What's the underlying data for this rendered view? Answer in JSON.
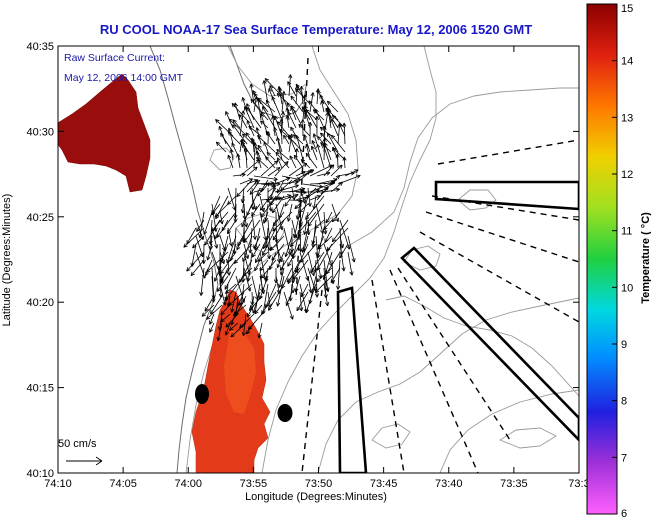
{
  "chart_data": {
    "type": "map",
    "title": "RU COOL  NOAA-17  Sea Surface Temperature:  May 12, 2006 1520 GMT",
    "xlabel": "Longitude (Degrees:Minutes)",
    "ylabel": "Latitude (Degrees:Minutes)",
    "x_ticks": [
      "74:10",
      "74:05",
      "74:00",
      "73:55",
      "73:50",
      "73:45",
      "73:40",
      "73:35",
      "73:3"
    ],
    "y_ticks": [
      "40:10",
      "40:15",
      "40:20",
      "40:25",
      "40:30",
      "40:35"
    ],
    "xlim_minutes_west": [
      10,
      30
    ],
    "ylim_minutes_north": [
      10,
      35
    ],
    "annotation_current": "Raw Surface Current:",
    "annotation_time": "May 12, 2006 14:00 GMT",
    "scale_label": "50 cm/s",
    "colorbar": {
      "label": "Temperature ( °C)",
      "ticks": [
        "15",
        "14",
        "13",
        "12",
        "11",
        "10",
        "9",
        "8",
        "7",
        "6"
      ],
      "range": [
        6,
        15
      ]
    },
    "sst_patches": [
      {
        "name": "north-west patch",
        "approx_temperature_c": 14.7
      },
      {
        "name": "coastal patch",
        "approx_temperature_c": 14.4
      }
    ],
    "markers": [
      {
        "name": "station-1",
        "lon": "73:59",
        "lat": "40:14.5"
      },
      {
        "name": "station-2",
        "lon": "73:52.5",
        "lat": "40:13.5"
      }
    ],
    "colors": {
      "title": "#1818c8",
      "annotation": "#1a1aa8",
      "contour": "#9a9a9a",
      "vector": "#000000"
    }
  }
}
